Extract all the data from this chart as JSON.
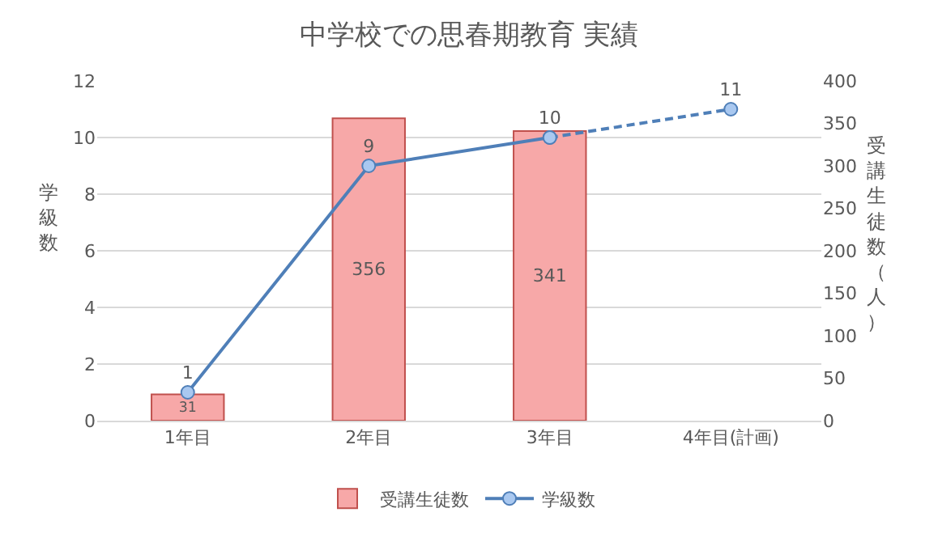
{
  "chart_data": {
    "type": "bar",
    "title": "中学校での思春期教育 実績",
    "categories": [
      "1年目",
      "2年目",
      "3年目",
      "4年目(計画)"
    ],
    "series": [
      {
        "name": "受講生徒数",
        "axis": "y2",
        "color": "#f7a8a8",
        "values": [
          31,
          356,
          341,
          null
        ],
        "value_labels": [
          "31",
          "356",
          "341",
          null
        ]
      },
      {
        "name": "学級数",
        "type": "line",
        "axis": "y",
        "color": "#4f7fb8",
        "values": [
          1,
          9,
          10,
          null
        ],
        "value_labels": [
          "1",
          "9",
          "10",
          null
        ],
        "marker": "circle",
        "line_style": "solid"
      },
      {
        "type": "line",
        "axis": "y",
        "color": "#4f7fb8",
        "values": [
          null,
          null,
          10,
          11
        ],
        "value_labels": [
          null,
          null,
          null,
          "11"
        ],
        "marker": "circle",
        "line_style": "dashed"
      }
    ],
    "ylabel": "学級数",
    "y2label": "受講生徒数（人）",
    "ylim": [
      0,
      12
    ],
    "yticks": [
      0,
      2,
      4,
      6,
      8,
      10,
      12
    ],
    "y2lim": [
      0,
      400
    ],
    "y2ticks": [
      0,
      50,
      100,
      150,
      200,
      250,
      300,
      350,
      400
    ],
    "grid": "y",
    "legend": "bottom"
  }
}
